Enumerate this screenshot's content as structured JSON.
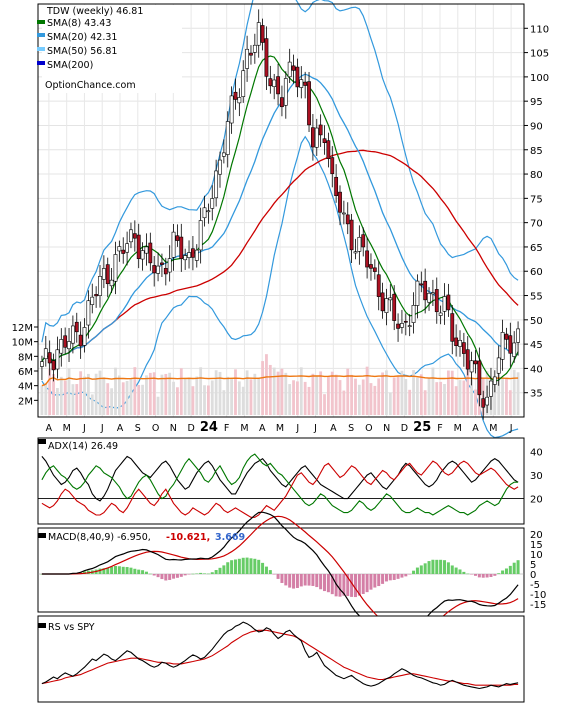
{
  "chart_data": [
    {
      "type": "candlestick",
      "symbol": "TDW",
      "legend": [
        {
          "label": "TDW (weekly) 46.81",
          "color": "#000000"
        },
        {
          "label": "SMA(8) 43.43",
          "color": "#007700"
        },
        {
          "label": "SMA(20) 42.31",
          "color": "#3399dd"
        },
        {
          "label": "SMA(50) 56.81",
          "color": "#77ccff"
        },
        {
          "label": "SMA(200)",
          "color": "#0000cc"
        }
      ],
      "watermark": "OptionChance.com",
      "y_ticks": [
        35,
        40,
        45,
        50,
        55,
        60,
        65,
        70,
        75,
        80,
        85,
        90,
        95,
        100,
        105,
        110
      ],
      "ylim": [
        30,
        115
      ],
      "vol_ticks": [
        "2M",
        "4M",
        "6M",
        "8M",
        "10M",
        "12M"
      ],
      "vol_lim": [
        0,
        12
      ],
      "x_ticks": [
        "A",
        "M",
        "J",
        "J",
        "A",
        "S",
        "O",
        "N",
        "D",
        "24",
        "F",
        "M",
        "A",
        "M",
        "J",
        "J",
        "A",
        "S",
        "O",
        "N",
        "D",
        "25",
        "F",
        "M",
        "A",
        "M",
        "J"
      ],
      "price_anchors": [
        {
          "w": 0,
          "v": 40
        },
        {
          "w": 4,
          "v": 44
        },
        {
          "w": 8,
          "v": 46
        },
        {
          "w": 10,
          "v": 48
        },
        {
          "w": 13,
          "v": 54
        },
        {
          "w": 16,
          "v": 59
        },
        {
          "w": 20,
          "v": 63
        },
        {
          "w": 24,
          "v": 68
        },
        {
          "w": 27,
          "v": 62
        },
        {
          "w": 30,
          "v": 60
        },
        {
          "w": 34,
          "v": 65
        },
        {
          "w": 38,
          "v": 63
        },
        {
          "w": 42,
          "v": 70
        },
        {
          "w": 45,
          "v": 80
        },
        {
          "w": 48,
          "v": 90
        },
        {
          "w": 50,
          "v": 95
        },
        {
          "w": 53,
          "v": 105
        },
        {
          "w": 56,
          "v": 108
        },
        {
          "w": 59,
          "v": 100
        },
        {
          "w": 62,
          "v": 95
        },
        {
          "w": 65,
          "v": 103
        },
        {
          "w": 68,
          "v": 97
        },
        {
          "w": 70,
          "v": 85
        },
        {
          "w": 73,
          "v": 90
        },
        {
          "w": 75,
          "v": 78
        },
        {
          "w": 78,
          "v": 70
        },
        {
          "w": 82,
          "v": 65
        },
        {
          "w": 85,
          "v": 60
        },
        {
          "w": 88,
          "v": 55
        },
        {
          "w": 91,
          "v": 50
        },
        {
          "w": 93,
          "v": 48
        },
        {
          "w": 95,
          "v": 52
        },
        {
          "w": 98,
          "v": 56
        },
        {
          "w": 101,
          "v": 55
        },
        {
          "w": 104,
          "v": 52
        },
        {
          "w": 106,
          "v": 47
        },
        {
          "w": 109,
          "v": 44
        },
        {
          "w": 111,
          "v": 40
        },
        {
          "w": 113,
          "v": 35
        },
        {
          "w": 115,
          "v": 34
        },
        {
          "w": 117,
          "v": 40
        },
        {
          "w": 119,
          "v": 44
        },
        {
          "w": 121,
          "v": 46
        },
        {
          "w": 123,
          "v": 47
        }
      ],
      "sma8_color": "#007700",
      "sma20_color": "#3399dd",
      "sma50_color": "#cc0000",
      "upper_band_color": "#3399dd",
      "avg_volume_color": "#ee7711"
    },
    {
      "type": "line",
      "title": "ADX(14) 26.49",
      "y_ticks": [
        20,
        30,
        40
      ],
      "ylim": [
        10,
        45
      ],
      "series": [
        {
          "color": "#000000",
          "values": [
            38,
            36,
            33,
            30,
            28,
            26,
            27,
            29,
            32,
            33,
            31,
            28,
            26,
            22,
            20,
            19,
            21,
            24,
            28,
            32,
            34,
            36,
            38,
            37,
            35,
            33,
            31,
            30,
            29,
            31,
            33,
            35,
            36,
            34,
            31,
            28,
            26,
            24,
            25,
            28,
            31,
            33,
            35,
            36,
            34,
            31,
            28,
            26,
            24,
            22,
            22,
            25,
            28,
            31,
            33,
            35,
            36,
            37,
            35,
            32,
            30,
            28,
            26,
            25,
            27,
            29,
            31,
            33,
            34,
            32,
            30,
            28,
            26,
            25,
            24,
            23,
            22,
            21,
            20,
            20,
            22,
            24,
            26,
            28,
            30,
            31,
            29,
            27,
            25,
            24,
            26,
            28,
            30,
            33,
            35,
            34,
            32,
            30,
            28,
            26,
            25,
            26,
            28,
            31,
            33,
            35,
            36,
            35,
            33,
            31,
            29,
            27,
            28,
            30,
            32,
            34,
            36,
            37,
            36,
            34,
            32,
            30,
            28,
            27
          ]
        },
        {
          "color": "#007700",
          "values": [
            28,
            31,
            33,
            34,
            32,
            30,
            29,
            27,
            25,
            24,
            25,
            27,
            30,
            32,
            34,
            33,
            31,
            30,
            29,
            27,
            25,
            22,
            20,
            21,
            24,
            27,
            29,
            30,
            28,
            25,
            22,
            20,
            21,
            24,
            26,
            29,
            32,
            35,
            37,
            35,
            33,
            31,
            28,
            27,
            29,
            32,
            34,
            31,
            28,
            26,
            27,
            29,
            33,
            36,
            38,
            39,
            37,
            35,
            34,
            35,
            33,
            31,
            30,
            28,
            26,
            24,
            22,
            20,
            18,
            17,
            18,
            20,
            22,
            21,
            19,
            17,
            16,
            15,
            14,
            14,
            15,
            17,
            19,
            18,
            16,
            15,
            16,
            18,
            20,
            22,
            21,
            19,
            17,
            15,
            14,
            14,
            15,
            16,
            15,
            14,
            14,
            13,
            14,
            15,
            16,
            17,
            16,
            15,
            14,
            14,
            13,
            14,
            15,
            17,
            18,
            19,
            18,
            17,
            18,
            21,
            24,
            26,
            27,
            27
          ]
        },
        {
          "color": "#cc0000",
          "values": [
            18,
            17,
            16,
            17,
            19,
            22,
            24,
            23,
            21,
            19,
            18,
            17,
            15,
            14,
            13,
            13,
            14,
            16,
            18,
            17,
            15,
            14,
            16,
            19,
            22,
            24,
            22,
            20,
            18,
            17,
            19,
            22,
            24,
            21,
            18,
            16,
            14,
            13,
            14,
            16,
            15,
            14,
            13,
            14,
            16,
            18,
            17,
            15,
            14,
            15,
            16,
            15,
            14,
            13,
            12,
            12,
            13,
            15,
            17,
            16,
            15,
            17,
            19,
            21,
            24,
            27,
            30,
            31,
            29,
            27,
            26,
            28,
            31,
            34,
            35,
            33,
            31,
            29,
            30,
            32,
            34,
            33,
            31,
            29,
            27,
            26,
            28,
            30,
            32,
            31,
            29,
            28,
            30,
            32,
            34,
            35,
            33,
            31,
            30,
            32,
            34,
            36,
            35,
            33,
            31,
            30,
            31,
            33,
            35,
            36,
            35,
            33,
            31,
            30,
            31,
            32,
            33,
            32,
            30,
            28,
            26,
            25,
            24,
            25
          ]
        }
      ],
      "hline": 20
    },
    {
      "type": "line",
      "title": "MACD(8,40,9) -6.950,",
      "macd_value": "-10.621,",
      "signal_value": "3.669",
      "macd_value_color": "#cc0000",
      "signal_value_color": "#3366cc",
      "y_ticks": [
        20,
        15,
        10,
        5,
        0,
        -5,
        -10,
        -15
      ],
      "y_tick_labels": [
        "20",
        "15",
        "10",
        "5",
        "0",
        "-5",
        "-10",
        "-15"
      ],
      "ylim": [
        -18,
        22
      ],
      "hist_color": "#66cc66",
      "macd_color": "#000000",
      "signal_color": "#cc0000"
    },
    {
      "type": "line",
      "title": "RS vs SPY",
      "series": [
        {
          "color": "#000000",
          "values": [
            0.3,
            0.32,
            0.35,
            0.38,
            0.36,
            0.4,
            0.43,
            0.41,
            0.39,
            0.42,
            0.46,
            0.5,
            0.55,
            0.6,
            0.58,
            0.62,
            0.66,
            0.64,
            0.6,
            0.58,
            0.62,
            0.66,
            0.7,
            0.68,
            0.64,
            0.6,
            0.58,
            0.55,
            0.52,
            0.5,
            0.52,
            0.56,
            0.55,
            0.52,
            0.5,
            0.52,
            0.55,
            0.58,
            0.62,
            0.65,
            0.63,
            0.6,
            0.62,
            0.67,
            0.72,
            0.78,
            0.84,
            0.9,
            0.94,
            0.96,
            1.0,
            1.02,
            1.05,
            1.03,
            1.0,
            0.96,
            0.93,
            0.94,
            0.98,
            0.96,
            0.9,
            0.85,
            0.88,
            0.93,
            0.95,
            0.9,
            0.86,
            0.82,
            0.7,
            0.62,
            0.64,
            0.68,
            0.6,
            0.52,
            0.48,
            0.44,
            0.4,
            0.38,
            0.36,
            0.38,
            0.4,
            0.36,
            0.33,
            0.3,
            0.28,
            0.27,
            0.28,
            0.3,
            0.33,
            0.36,
            0.38,
            0.42,
            0.45,
            0.48,
            0.46,
            0.43,
            0.4,
            0.38,
            0.37,
            0.35,
            0.33,
            0.31,
            0.3,
            0.28,
            0.29,
            0.32,
            0.34,
            0.32,
            0.3,
            0.28,
            0.27,
            0.26,
            0.25,
            0.24,
            0.25,
            0.26,
            0.28,
            0.27,
            0.26,
            0.28,
            0.3,
            0.29,
            0.3,
            0.31
          ]
        },
        {
          "color": "#cc0000",
          "values": [
            0.3,
            0.31,
            0.32,
            0.33,
            0.34,
            0.35,
            0.37,
            0.38,
            0.39,
            0.4,
            0.41,
            0.43,
            0.45,
            0.47,
            0.49,
            0.51,
            0.53,
            0.55,
            0.56,
            0.57,
            0.58,
            0.59,
            0.6,
            0.61,
            0.61,
            0.61,
            0.6,
            0.59,
            0.58,
            0.57,
            0.56,
            0.56,
            0.55,
            0.55,
            0.54,
            0.54,
            0.54,
            0.55,
            0.56,
            0.57,
            0.58,
            0.59,
            0.6,
            0.62,
            0.64,
            0.67,
            0.7,
            0.73,
            0.76,
            0.8,
            0.83,
            0.86,
            0.89,
            0.91,
            0.93,
            0.94,
            0.95,
            0.95,
            0.95,
            0.94,
            0.93,
            0.92,
            0.91,
            0.9,
            0.89,
            0.88,
            0.86,
            0.83,
            0.8,
            0.77,
            0.74,
            0.71,
            0.68,
            0.65,
            0.62,
            0.59,
            0.56,
            0.53,
            0.5,
            0.48,
            0.46,
            0.44,
            0.42,
            0.4,
            0.38,
            0.37,
            0.36,
            0.35,
            0.35,
            0.36,
            0.37,
            0.38,
            0.39,
            0.4,
            0.41,
            0.42,
            0.42,
            0.41,
            0.4,
            0.39,
            0.38,
            0.37,
            0.36,
            0.35,
            0.34,
            0.33,
            0.33,
            0.32,
            0.31,
            0.3,
            0.3,
            0.29,
            0.28,
            0.28,
            0.28,
            0.28,
            0.28,
            0.28,
            0.28,
            0.28,
            0.28,
            0.28,
            0.29,
            0.29
          ]
        }
      ],
      "ylim": [
        0.1,
        1.1
      ]
    }
  ]
}
